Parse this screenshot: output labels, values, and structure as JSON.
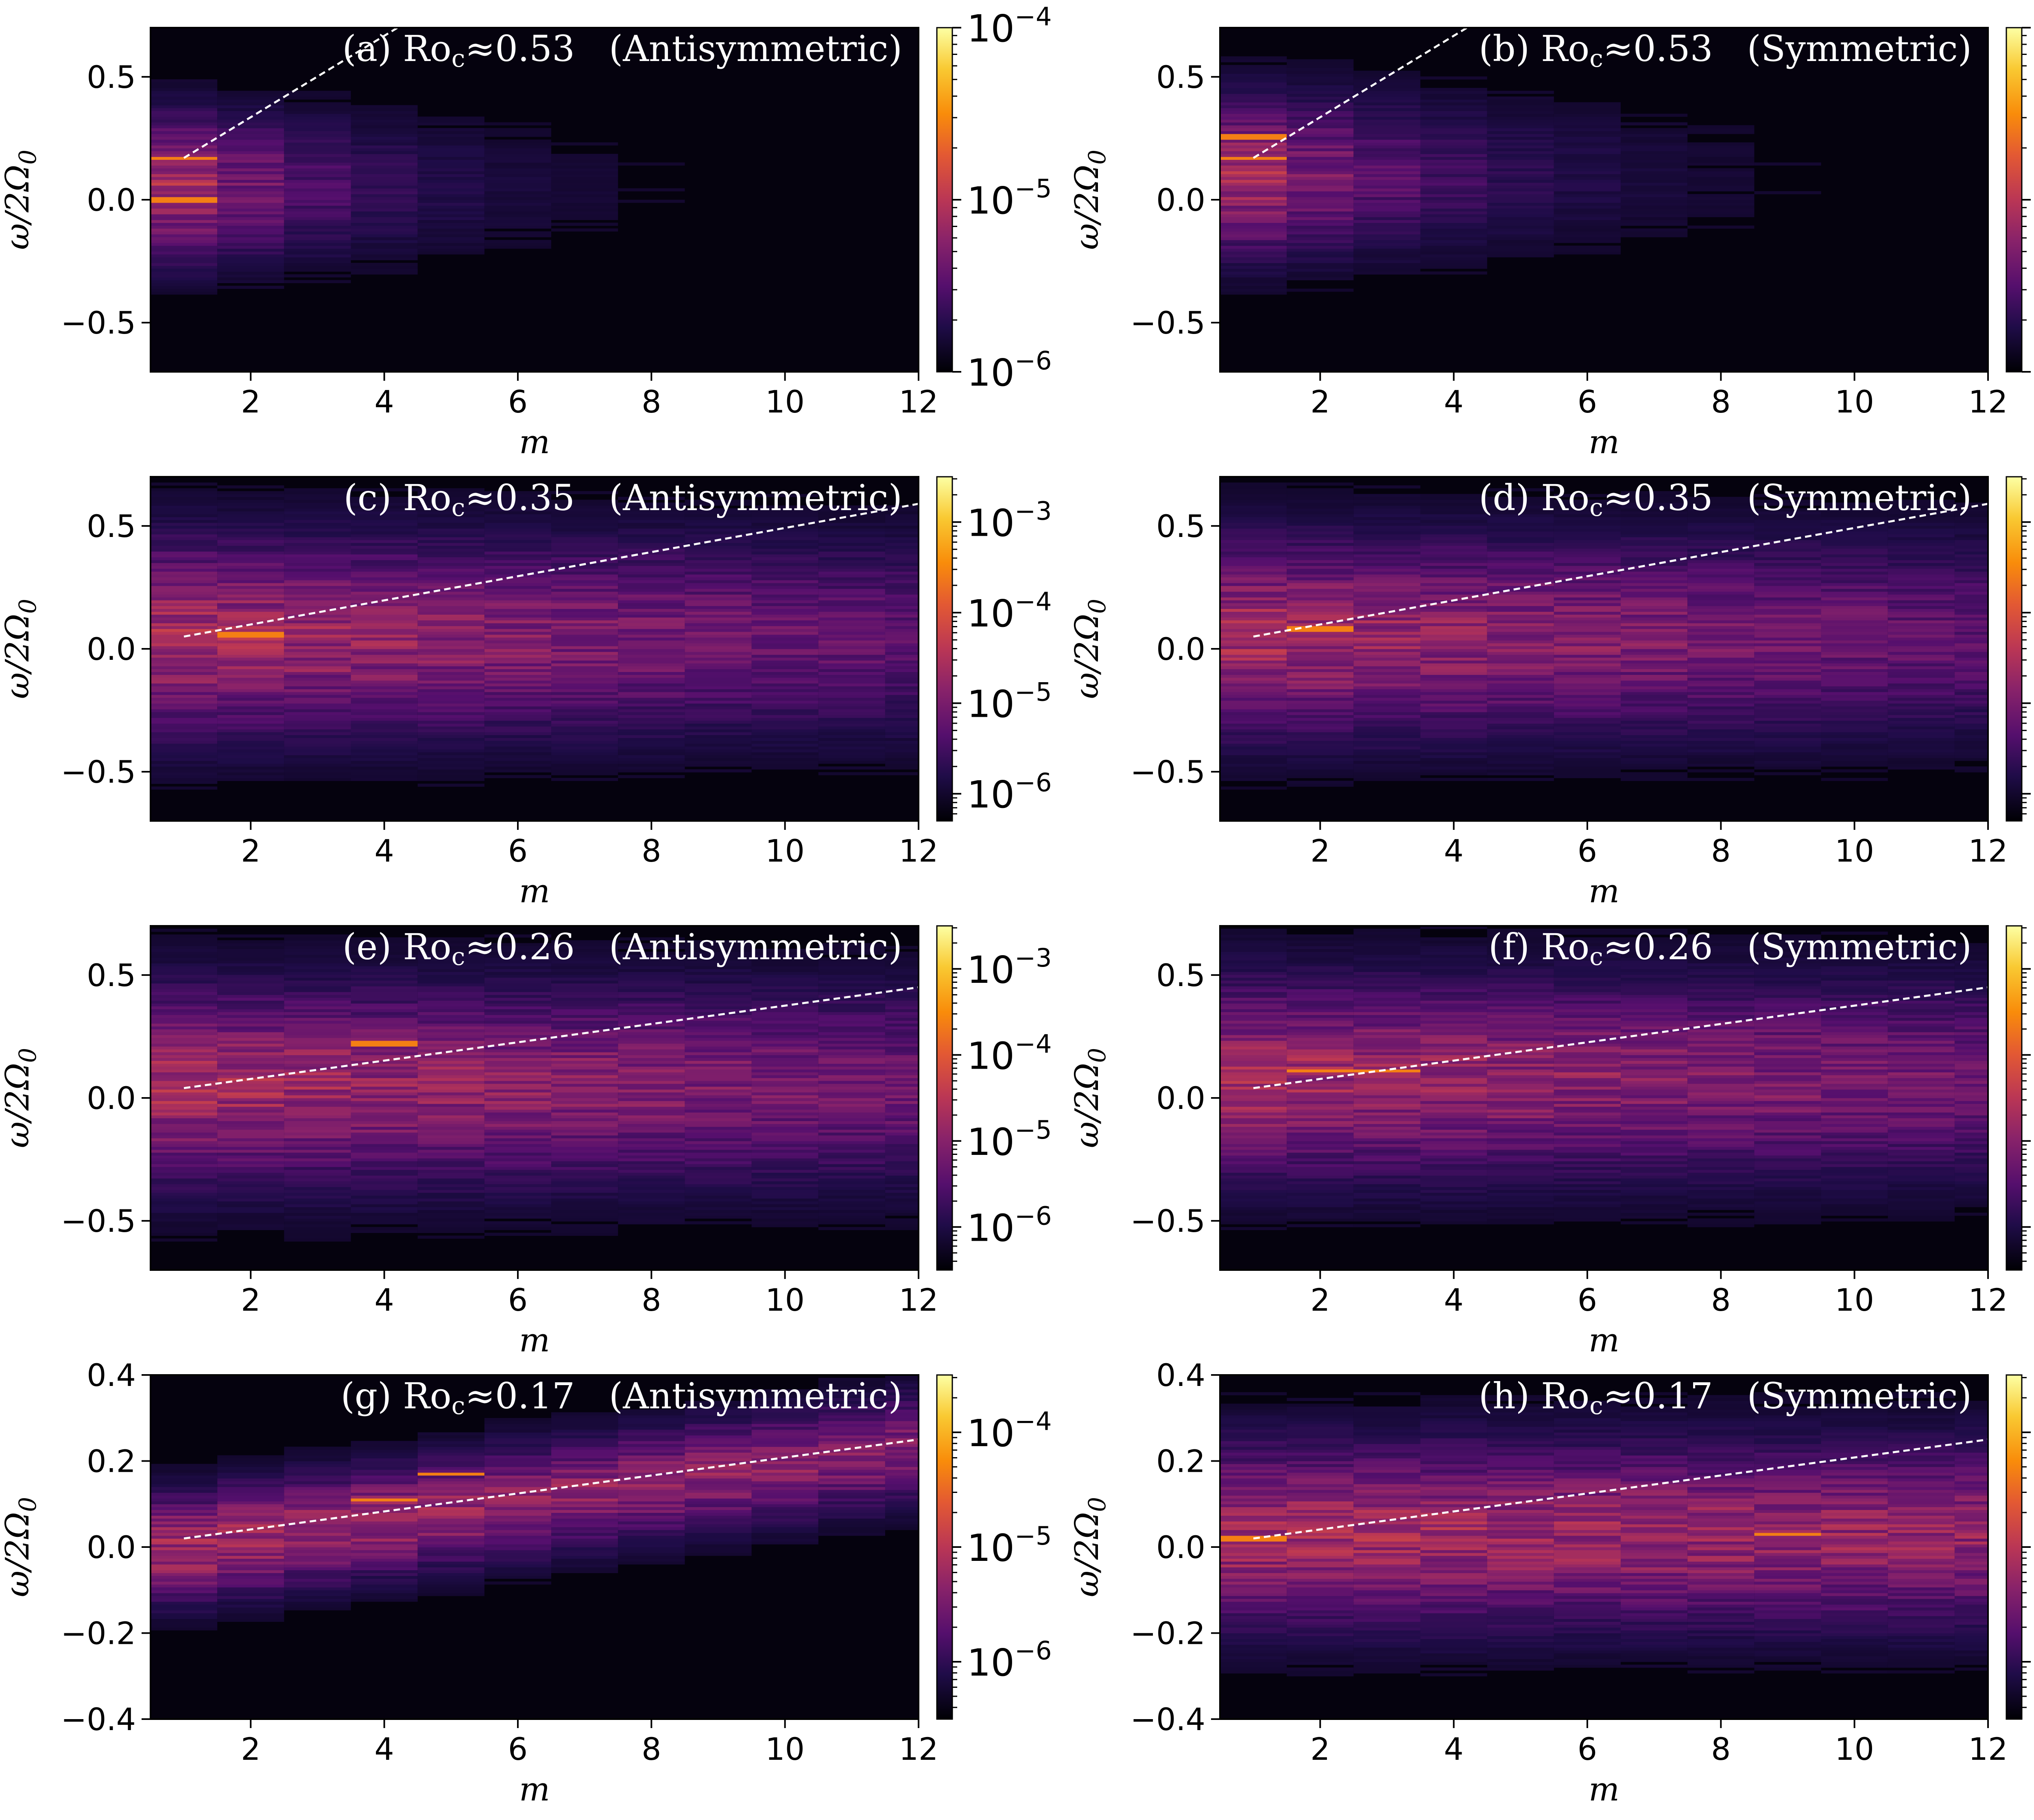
{
  "chart_data": [
    {
      "type": "heatmap",
      "title": "(a) Ro_c ≈ 0.53  (Antisymmetric)",
      "title_parts": {
        "label": "(a)",
        "ro_sym": "Ro",
        "ro_sub": "c",
        "approx": "≈",
        "value": "0.53",
        "kind": "(Antisymmetric)"
      },
      "xlabel": "m",
      "ylabel": "ω/2Ω0",
      "xlim": [
        0.5,
        12
      ],
      "ylim": [
        -0.7,
        0.7
      ],
      "xticks": [
        2,
        4,
        6,
        8,
        10,
        12
      ],
      "yticks": [
        -0.5,
        0.0,
        0.5
      ],
      "yticklabels": [
        "−0.5",
        "0.0",
        "0.5"
      ],
      "colorbar": {
        "scale": "log",
        "colormap": "inferno",
        "min_exp": -6,
        "max_exp": -4,
        "ticks_exp": [
          -6,
          -5,
          -4
        ]
      },
      "dashed_line": {
        "x": [
          1,
          4.2
        ],
        "y": [
          0.17,
          0.7
        ]
      },
      "intensity": {
        "center": 0.05,
        "spread": 0.28,
        "decay": 0.38,
        "peak": [
          {
            "m": 1,
            "y": 0.0
          },
          {
            "m": 1,
            "y": 0.17
          }
        ]
      }
    },
    {
      "type": "heatmap",
      "title": "(b) Ro_c ≈ 0.53  (Symmetric)",
      "title_parts": {
        "label": "(b)",
        "ro_sym": "Ro",
        "ro_sub": "c",
        "approx": "≈",
        "value": "0.53",
        "kind": "(Symmetric)"
      },
      "xlabel": "m",
      "ylabel": "ω/2Ω0",
      "xlim": [
        0.5,
        12
      ],
      "ylim": [
        -0.7,
        0.7
      ],
      "xticks": [
        2,
        4,
        6,
        8,
        10,
        12
      ],
      "yticks": [
        -0.5,
        0.0,
        0.5
      ],
      "yticklabels": [
        "−0.5",
        "0.0",
        "0.5"
      ],
      "colorbar": {
        "scale": "log",
        "colormap": "inferno",
        "min_exp": -6,
        "max_exp": -4,
        "ticks_exp": [
          -6,
          -5,
          -4
        ]
      },
      "dashed_line": {
        "x": [
          1,
          4.2
        ],
        "y": [
          0.17,
          0.7
        ]
      },
      "intensity": {
        "center": 0.1,
        "spread": 0.3,
        "decay": 0.32,
        "peak": [
          {
            "m": 1,
            "y": 0.17
          },
          {
            "m": 1,
            "y": 0.26
          }
        ]
      }
    },
    {
      "type": "heatmap",
      "title": "(c) Ro_c ≈ 0.35  (Antisymmetric)",
      "title_parts": {
        "label": "(c)",
        "ro_sym": "Ro",
        "ro_sub": "c",
        "approx": "≈",
        "value": "0.35",
        "kind": "(Antisymmetric)"
      },
      "xlabel": "m",
      "ylabel": "ω/2Ω0",
      "xlim": [
        0.5,
        12
      ],
      "ylim": [
        -0.7,
        0.7
      ],
      "xticks": [
        2,
        4,
        6,
        8,
        10,
        12
      ],
      "yticks": [
        -0.5,
        0.0,
        0.5
      ],
      "yticklabels": [
        "−0.5",
        "0.0",
        "0.5"
      ],
      "colorbar": {
        "scale": "log",
        "colormap": "inferno",
        "min_exp": -6.3,
        "max_exp": -2.5,
        "ticks_exp": [
          -6,
          -5,
          -4,
          -3
        ]
      },
      "dashed_line": {
        "x": [
          1,
          12
        ],
        "y": [
          0.05,
          0.59
        ]
      },
      "intensity": {
        "center": 0.05,
        "spread": 0.38,
        "decay": 0.04,
        "peak": [
          {
            "m": 2,
            "y": 0.06
          }
        ]
      }
    },
    {
      "type": "heatmap",
      "title": "(d) Ro_c ≈ 0.35  (Symmetric)",
      "title_parts": {
        "label": "(d)",
        "ro_sym": "Ro",
        "ro_sub": "c",
        "approx": "≈",
        "value": "0.35",
        "kind": "(Symmetric)"
      },
      "xlabel": "m",
      "ylabel": "ω/2Ω0",
      "xlim": [
        0.5,
        12
      ],
      "ylim": [
        -0.7,
        0.7
      ],
      "xticks": [
        2,
        4,
        6,
        8,
        10,
        12
      ],
      "yticks": [
        -0.5,
        0.0,
        0.5
      ],
      "yticklabels": [
        "−0.5",
        "0.0",
        "0.5"
      ],
      "colorbar": {
        "scale": "log",
        "colormap": "inferno",
        "min_exp": -6.3,
        "max_exp": -2.5,
        "ticks_exp": [
          -6,
          -5,
          -4,
          -3
        ]
      },
      "dashed_line": {
        "x": [
          1,
          12
        ],
        "y": [
          0.05,
          0.59
        ]
      },
      "intensity": {
        "center": 0.05,
        "spread": 0.38,
        "decay": 0.04,
        "peak": [
          {
            "m": 2,
            "y": 0.08
          }
        ]
      }
    },
    {
      "type": "heatmap",
      "title": "(e) Ro_c ≈ 0.26  (Antisymmetric)",
      "title_parts": {
        "label": "(e)",
        "ro_sym": "Ro",
        "ro_sub": "c",
        "approx": "≈",
        "value": "0.26",
        "kind": "(Antisymmetric)"
      },
      "xlabel": "m",
      "ylabel": "ω/2Ω0",
      "xlim": [
        0.5,
        12
      ],
      "ylim": [
        -0.7,
        0.7
      ],
      "xticks": [
        2,
        4,
        6,
        8,
        10,
        12
      ],
      "yticks": [
        -0.5,
        0.0,
        0.5
      ],
      "yticklabels": [
        "−0.5",
        "0.0",
        "0.5"
      ],
      "colorbar": {
        "scale": "log",
        "colormap": "inferno",
        "min_exp": -6.5,
        "max_exp": -2.5,
        "ticks_exp": [
          -6,
          -5,
          -4,
          -3
        ]
      },
      "dashed_line": {
        "x": [
          1,
          12
        ],
        "y": [
          0.04,
          0.45
        ]
      },
      "intensity": {
        "center": 0.05,
        "spread": 0.38,
        "decay": 0.03,
        "peak": [
          {
            "m": 4,
            "y": 0.22
          }
        ]
      }
    },
    {
      "type": "heatmap",
      "title": "(f) Ro_c ≈ 0.26  (Symmetric)",
      "title_parts": {
        "label": "(f)",
        "ro_sym": "Ro",
        "ro_sub": "c",
        "approx": "≈",
        "value": "0.26",
        "kind": "(Symmetric)"
      },
      "xlabel": "m",
      "ylabel": "ω/2Ω0",
      "xlim": [
        0.5,
        12
      ],
      "ylim": [
        -0.7,
        0.7
      ],
      "xticks": [
        2,
        4,
        6,
        8,
        10,
        12
      ],
      "yticks": [
        -0.5,
        0.0,
        0.5
      ],
      "yticklabels": [
        "−0.5",
        "0.0",
        "0.5"
      ],
      "colorbar": {
        "scale": "log",
        "colormap": "inferno",
        "min_exp": -6.5,
        "max_exp": -2.5,
        "ticks_exp": [
          -6,
          -5,
          -4,
          -3
        ]
      },
      "dashed_line": {
        "x": [
          1,
          12
        ],
        "y": [
          0.04,
          0.45
        ]
      },
      "intensity": {
        "center": 0.08,
        "spread": 0.38,
        "decay": 0.03,
        "peak": [
          {
            "m": 2,
            "y": 0.11
          },
          {
            "m": 3,
            "y": 0.11
          }
        ]
      }
    },
    {
      "type": "heatmap",
      "title": "(g) Ro_c ≈ 0.17  (Antisymmetric)",
      "title_parts": {
        "label": "(g)",
        "ro_sym": "Ro",
        "ro_sub": "c",
        "approx": "≈",
        "value": "0.17",
        "kind": "(Antisymmetric)"
      },
      "xlabel": "m",
      "ylabel": "ω/2Ω0",
      "xlim": [
        0.5,
        12
      ],
      "ylim": [
        -0.4,
        0.4
      ],
      "xticks": [
        2,
        4,
        6,
        8,
        10,
        12
      ],
      "yticks": [
        -0.4,
        -0.2,
        0.0,
        0.2,
        0.4
      ],
      "yticklabels": [
        "−0.4",
        "−0.2",
        "0.0",
        "0.2",
        "0.4"
      ],
      "colorbar": {
        "scale": "log",
        "colormap": "inferno",
        "min_exp": -6.5,
        "max_exp": -3.5,
        "ticks_exp": [
          -6,
          -5,
          -4
        ]
      },
      "dashed_line": {
        "x": [
          1,
          12
        ],
        "y": [
          0.02,
          0.25
        ]
      },
      "intensity": {
        "center": 0.1,
        "spread": 0.12,
        "decay": 0.02,
        "follow_line": true,
        "peak": [
          {
            "m": 4,
            "y": 0.11
          },
          {
            "m": 5,
            "y": 0.17
          }
        ]
      }
    },
    {
      "type": "heatmap",
      "title": "(h) Ro_c ≈ 0.17  (Symmetric)",
      "title_parts": {
        "label": "(h)",
        "ro_sym": "Ro",
        "ro_sub": "c",
        "approx": "≈",
        "value": "0.17",
        "kind": "(Symmetric)"
      },
      "xlabel": "m",
      "ylabel": "ω/2Ω0",
      "xlim": [
        0.5,
        12
      ],
      "ylim": [
        -0.4,
        0.4
      ],
      "xticks": [
        2,
        4,
        6,
        8,
        10,
        12
      ],
      "yticks": [
        -0.4,
        -0.2,
        0.0,
        0.2,
        0.4
      ],
      "yticklabels": [
        "−0.4",
        "−0.2",
        "0.0",
        "0.2",
        "0.4"
      ],
      "colorbar": {
        "scale": "log",
        "colormap": "inferno",
        "min_exp": -6.5,
        "max_exp": -3.5,
        "ticks_exp": [
          -6,
          -5,
          -4
        ]
      },
      "dashed_line": {
        "x": [
          1,
          12
        ],
        "y": [
          0.02,
          0.25
        ]
      },
      "intensity": {
        "center": 0.03,
        "spread": 0.2,
        "decay": 0.01,
        "peak": [
          {
            "m": 1,
            "y": 0.02
          },
          {
            "m": 9,
            "y": 0.03
          }
        ]
      }
    }
  ]
}
